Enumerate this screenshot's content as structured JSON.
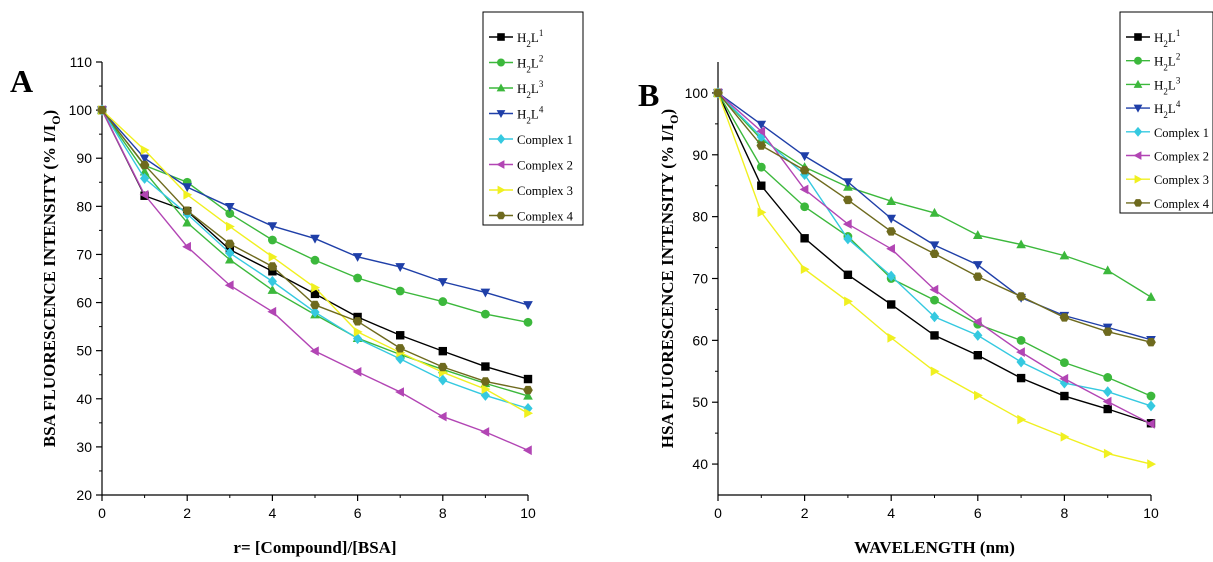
{
  "chart_data": [
    {
      "type": "line",
      "panel_label": "A",
      "xlabel": "r= [Compound]/[BSA]",
      "ylabel": "BSA FLUORESCENCE INTENSITY (% I/I",
      "ylabel_sub": "O",
      "ylabel_end": ")",
      "xlim": [
        0,
        10
      ],
      "ylim": [
        20,
        110
      ],
      "x_ticks": [
        "0",
        "2",
        "4",
        "6",
        "8",
        "10"
      ],
      "y_ticks": [
        "20",
        "30",
        "40",
        "50",
        "60",
        "70",
        "80",
        "90",
        "100",
        "110"
      ],
      "grid": false,
      "legend_position": "top-right",
      "x": [
        0,
        1,
        2,
        3,
        4,
        5,
        6,
        7,
        8,
        9,
        10
      ],
      "series": [
        {
          "name": "HL",
          "sub": "2",
          "sup": "1",
          "color": "#000000",
          "marker": "square",
          "values": [
            100,
            82.2,
            79,
            71,
            66.5,
            61.8,
            57,
            53.2,
            49.9,
            46.7,
            44.1
          ]
        },
        {
          "name": "HL",
          "sub": "2",
          "sup": "2",
          "color": "#3cb83c",
          "marker": "circle",
          "values": [
            100,
            88.5,
            85,
            78.5,
            73,
            68.8,
            65.1,
            62.4,
            60.2,
            57.6,
            55.9
          ]
        },
        {
          "name": "HL",
          "sub": "2",
          "sup": "3",
          "color": "#3cb83c",
          "marker": "triangle-up",
          "values": [
            100,
            87.2,
            76.6,
            68.9,
            62.6,
            57.5,
            52.6,
            49.2,
            46.1,
            43.2,
            40.6
          ]
        },
        {
          "name": "HL",
          "sub": "2",
          "sup": "4",
          "color": "#1f3fa8",
          "marker": "triangle-down",
          "values": [
            100,
            90,
            84,
            79.9,
            75.9,
            73.3,
            69.5,
            67.4,
            64.3,
            62.1,
            59.5
          ]
        },
        {
          "name": "Complex 1",
          "color": "#35c9e0",
          "marker": "diamond",
          "values": [
            100,
            85.8,
            78.4,
            70.3,
            64.4,
            58,
            52.5,
            48.3,
            43.9,
            40.7,
            38
          ]
        },
        {
          "name": "Complex 2",
          "color": "#b245b4",
          "marker": "triangle-left",
          "values": [
            100,
            82.4,
            71.6,
            63.6,
            58.1,
            49.9,
            45.6,
            41.4,
            36.3,
            33.1,
            29.3
          ]
        },
        {
          "name": "Complex 3",
          "color": "#f0f020",
          "marker": "triangle-right",
          "values": [
            100,
            91.7,
            82.4,
            75.8,
            69.5,
            63.1,
            53.9,
            49.6,
            45.5,
            42,
            37
          ]
        },
        {
          "name": "Complex 4",
          "color": "#6e6a1e",
          "marker": "hexagon",
          "values": [
            100,
            88.6,
            79.1,
            72.2,
            67.5,
            59.5,
            56.1,
            50.5,
            46.6,
            43.6,
            41.8
          ]
        }
      ]
    },
    {
      "type": "line",
      "panel_label": "B",
      "xlabel": "WAVELENGTH (nm)",
      "ylabel": "HSA FLUORESCENCE INTENSITY (% I/I",
      "ylabel_sub": "O",
      "ylabel_end": ")",
      "xlim": [
        0,
        10
      ],
      "ylim": [
        35,
        105
      ],
      "x_ticks": [
        "0",
        "2",
        "4",
        "6",
        "8",
        "10"
      ],
      "y_ticks": [
        "40",
        "50",
        "60",
        "70",
        "80",
        "90",
        "100"
      ],
      "grid": false,
      "legend_position": "top-right",
      "x": [
        0,
        1,
        2,
        3,
        4,
        5,
        6,
        7,
        8,
        9,
        10
      ],
      "series": [
        {
          "name": "HL",
          "sub": "2",
          "sup": "1",
          "color": "#000000",
          "marker": "square",
          "values": [
            100,
            85,
            76.5,
            70.6,
            65.8,
            60.8,
            57.6,
            53.9,
            51,
            48.9,
            46.6
          ]
        },
        {
          "name": "HL",
          "sub": "2",
          "sup": "2",
          "color": "#3cb83c",
          "marker": "circle",
          "values": [
            100,
            88,
            81.6,
            76.8,
            70,
            66.5,
            62.6,
            60,
            56.4,
            54,
            51
          ]
        },
        {
          "name": "HL",
          "sub": "2",
          "sup": "3",
          "color": "#3cb83c",
          "marker": "triangle-up",
          "values": [
            100,
            92.5,
            88,
            84.8,
            82.5,
            80.6,
            77,
            75.5,
            73.7,
            71.3,
            67
          ]
        },
        {
          "name": "HL",
          "sub": "2",
          "sup": "4",
          "color": "#1f3fa8",
          "marker": "triangle-down",
          "values": [
            100,
            94.9,
            89.8,
            85.6,
            79.7,
            75.4,
            72.2,
            66.9,
            64,
            62.1,
            60.1
          ]
        },
        {
          "name": "Complex 1",
          "color": "#35c9e0",
          "marker": "diamond",
          "values": [
            100,
            92.9,
            86.8,
            76.4,
            70.4,
            63.8,
            60.8,
            56.5,
            53.1,
            51.7,
            49.4
          ]
        },
        {
          "name": "Complex 2",
          "color": "#b245b4",
          "marker": "triangle-left",
          "values": [
            100,
            93.8,
            84.4,
            78.8,
            74.8,
            68.2,
            63,
            58.1,
            53.8,
            50.1,
            46.5
          ]
        },
        {
          "name": "Complex 3",
          "color": "#f0f020",
          "marker": "triangle-right",
          "values": [
            100,
            80.7,
            71.5,
            66.3,
            60.4,
            55,
            51.1,
            47.2,
            44.4,
            41.7,
            40
          ]
        },
        {
          "name": "Complex 4",
          "color": "#6e6a1e",
          "marker": "hexagon",
          "values": [
            100,
            91.5,
            87.5,
            82.7,
            77.6,
            74,
            70.3,
            67.1,
            63.7,
            61.4,
            59.7
          ]
        }
      ]
    }
  ]
}
